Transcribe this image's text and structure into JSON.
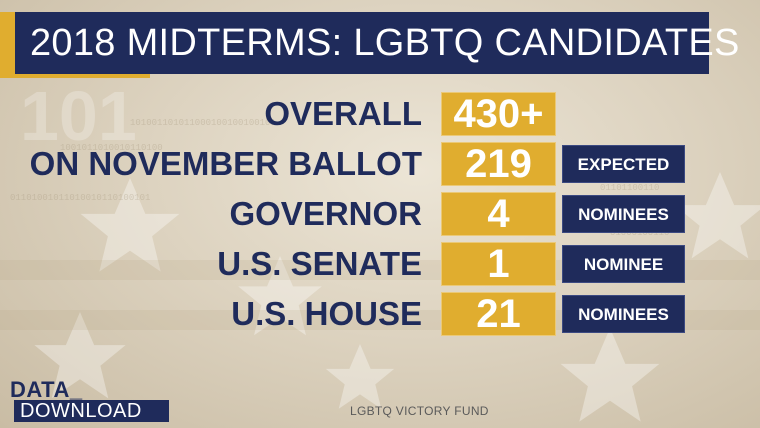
{
  "title": "2018 MIDTERMS: LGBTQ CANDIDATES",
  "rows": [
    {
      "label": "OVERALL",
      "value": "430+",
      "note": ""
    },
    {
      "label": "ON NOVEMBER BALLOT",
      "value": "219",
      "note": "EXPECTED"
    },
    {
      "label": "GOVERNOR",
      "value": "4",
      "note": "NOMINEES"
    },
    {
      "label": "U.S. SENATE",
      "value": "1",
      "note": "NOMINEE"
    },
    {
      "label": "U.S. HOUSE",
      "value": "21",
      "note": "NOMINEES"
    }
  ],
  "brand": {
    "line1": "DATA_",
    "line2": "DOWNLOAD"
  },
  "source": "LGBTQ VICTORY FUND",
  "colors": {
    "navy": "#1f2b5b",
    "gold": "#e0ad2f",
    "background": "#e6dece"
  }
}
